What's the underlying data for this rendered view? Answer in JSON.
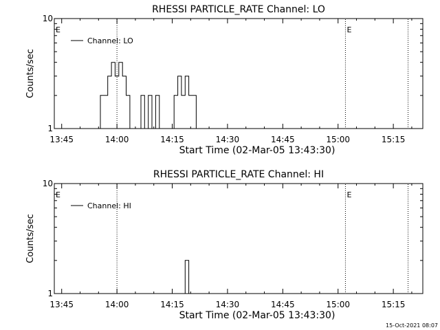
{
  "footer": {
    "timestamp": "15-Oct-2021 08:07"
  },
  "chart_data": [
    {
      "type": "line",
      "title": "RHESSI PARTICLE_RATE Channel: LO",
      "xlabel": "Start Time (02-Mar-05 13:43:30)",
      "ylabel": "Counts/sec",
      "y_scale": "log",
      "ylim": [
        1,
        10
      ],
      "xlim": [
        "13:43",
        "15:23"
      ],
      "x_ticks": [
        "13:45",
        "14:00",
        "14:15",
        "14:30",
        "14:45",
        "15:00",
        "15:15"
      ],
      "y_ticks": [
        "1",
        "10"
      ],
      "legend": {
        "entry": "Channel: LO",
        "placement": "top-left"
      },
      "markers": [
        {
          "time": "13:43",
          "label": "E"
        },
        {
          "time": "14:00",
          "label": ""
        },
        {
          "time": "15:02",
          "label": "E"
        },
        {
          "time": "15:19",
          "label": ""
        }
      ],
      "series": [
        {
          "name": "Channel: LO",
          "x": [
            "13:55",
            "13:56",
            "13:57",
            "13:58",
            "13:59",
            "14:00",
            "14:01",
            "14:02",
            "14:03",
            "14:04",
            "14:05",
            "14:06",
            "14:07",
            "14:08",
            "14:09",
            "14:10",
            "14:11",
            "14:12",
            "14:13",
            "14:14",
            "14:15",
            "14:16",
            "14:17",
            "14:18",
            "14:19",
            "14:20",
            "14:21",
            "14:22"
          ],
          "values": [
            1,
            2,
            2,
            3,
            4,
            3,
            4,
            3,
            2,
            1,
            1,
            1,
            2,
            1,
            2,
            1,
            2,
            1,
            1,
            1,
            1,
            2,
            3,
            2,
            3,
            2,
            2,
            1
          ]
        }
      ]
    },
    {
      "type": "line",
      "title": "RHESSI PARTICLE_RATE Channel: HI",
      "xlabel": "Start Time (02-Mar-05 13:43:30)",
      "ylabel": "Counts/sec",
      "y_scale": "log",
      "ylim": [
        1,
        10
      ],
      "xlim": [
        "13:43",
        "15:23"
      ],
      "x_ticks": [
        "13:45",
        "14:00",
        "14:15",
        "14:30",
        "14:45",
        "15:00",
        "15:15"
      ],
      "y_ticks": [
        "1",
        "10"
      ],
      "legend": {
        "entry": "Channel: HI",
        "placement": "top-left"
      },
      "markers": [
        {
          "time": "13:43",
          "label": "E"
        },
        {
          "time": "14:00",
          "label": ""
        },
        {
          "time": "15:02",
          "label": "E"
        },
        {
          "time": "15:19",
          "label": ""
        }
      ],
      "series": [
        {
          "name": "Channel: HI",
          "x": [
            "14:18",
            "14:19",
            "14:20"
          ],
          "values": [
            1,
            2,
            1
          ]
        }
      ]
    }
  ]
}
